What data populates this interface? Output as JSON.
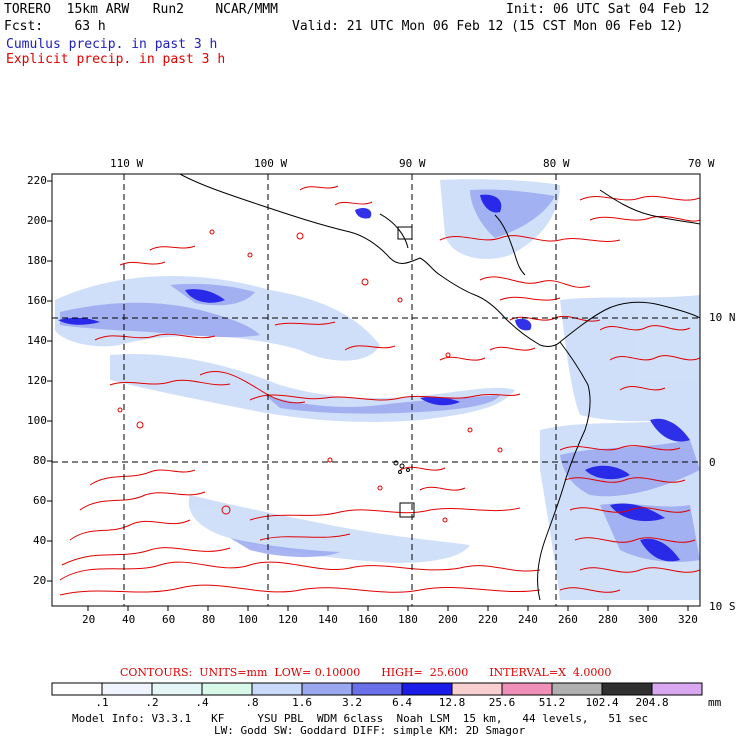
{
  "header": {
    "model": "TORERO  15km ARW   Run2    NCAR/MMM",
    "init": "Init: 06 UTC Sat 04 Feb 12",
    "fcst": "Fcst:    63 h",
    "valid": "Valid: 21 UTC Mon 06 Feb 12 (15 CST Mon 06 Feb 12)",
    "line_cumulus": "Cumulus precip. in past 3 h",
    "line_explicit": "Explicit precip. in past 3 h"
  },
  "map": {
    "top_lon_labels": [
      "110 W",
      "100 W",
      "90 W",
      "80 W",
      "70 W"
    ],
    "right_lat_labels": [
      "10 N",
      "0",
      "10 S"
    ],
    "left_y_ticks": [
      "220",
      "200",
      "180",
      "160",
      "140",
      "120",
      "100",
      "80",
      "60",
      "40",
      "20"
    ],
    "bottom_x_ticks": [
      "20",
      "40",
      "60",
      "80",
      "100",
      "120",
      "140",
      "160",
      "180",
      "200",
      "220",
      "240",
      "260",
      "280",
      "300",
      "320"
    ]
  },
  "contours_line": {
    "label": "CONTOURS:  UNITS=mm  LOW= 0.10000      HIGH=  25.600      INTERVAL=X  4.0000"
  },
  "legend": {
    "labels": [
      ".1",
      ".2",
      ".4",
      ".8",
      "1.6",
      "3.2",
      "6.4",
      "12.8",
      "25.6",
      "51.2",
      "102.4",
      "204.8"
    ],
    "unit": "mm",
    "colors": [
      "#ffffff",
      "#f0f4ff",
      "#e4f6f6",
      "#d8f8ea",
      "#c8daf8",
      "#9aa8f0",
      "#6a70ea",
      "#1c1ce8",
      "#f8d0d0",
      "#f090b8",
      "#b0b0b0",
      "#303030",
      "#d8a8f0"
    ]
  },
  "footer": {
    "line1": "Model Info: V3.3.1   KF     YSU PBL  WDM 6class  Noah LSM  15 km,   44 levels,   51 sec",
    "line2": "LW: Godd SW: Goddard DIFF: simple KM: 2D Smagor"
  },
  "colors": {
    "cumulus_text": "#2020c0",
    "explicit_text": "#e00000",
    "explicit_contour": "#e00000",
    "coastline": "#000000"
  }
}
